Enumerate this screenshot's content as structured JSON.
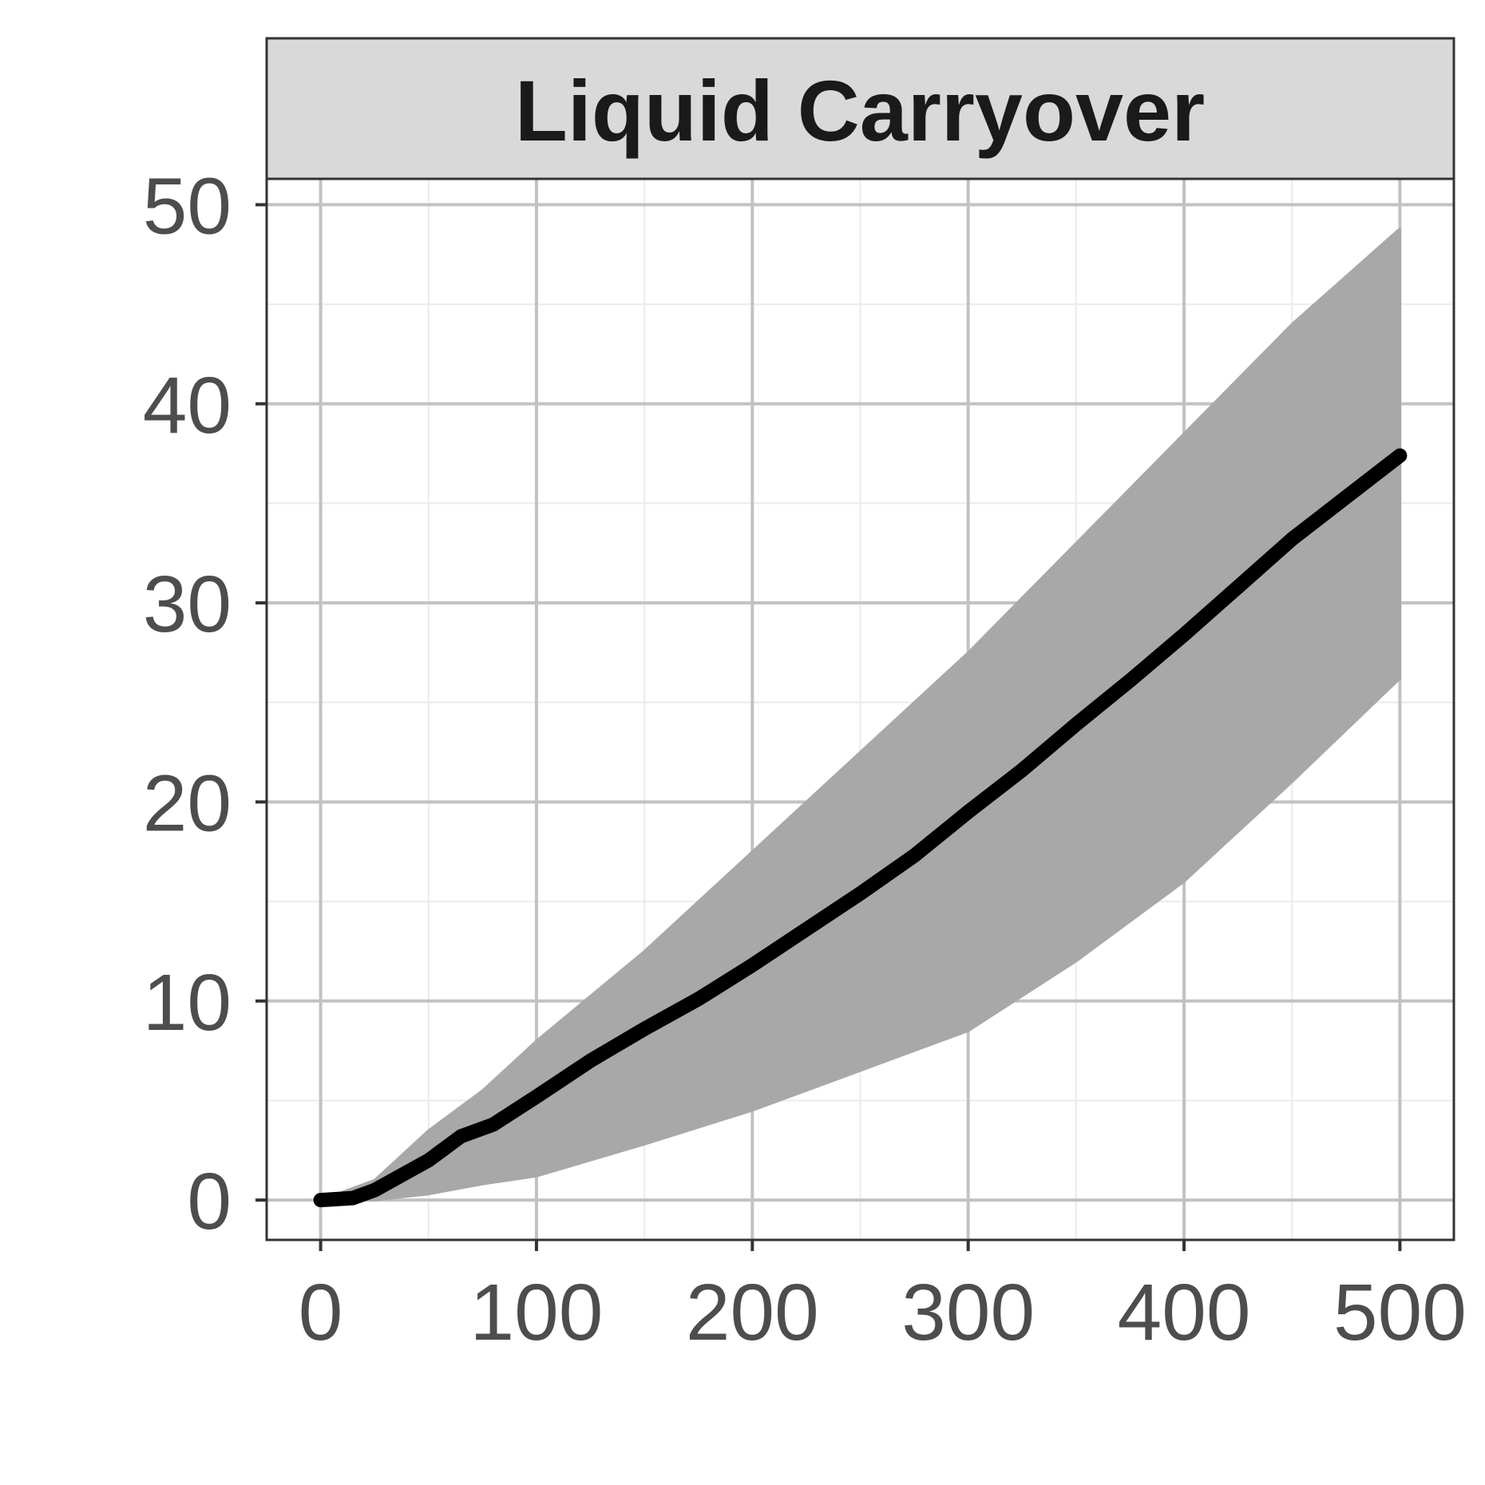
{
  "chart_data": {
    "type": "line",
    "title": "Liquid Carryover",
    "xlabel": "",
    "ylabel": "",
    "xlim": [
      -25,
      525
    ],
    "ylim": [
      -2,
      51.3
    ],
    "x_ticks": [
      0,
      100,
      200,
      300,
      400,
      500
    ],
    "y_ticks": [
      0,
      10,
      20,
      30,
      40,
      50
    ],
    "x_minor_ticks": [
      50,
      150,
      250,
      350,
      450
    ],
    "y_minor_ticks": [
      5,
      15,
      25,
      35,
      45
    ],
    "grid": true,
    "legend": "none",
    "series": [
      {
        "role": "simulations-upper-envelope",
        "color": "#a8a8a8",
        "x": [
          0,
          25,
          50,
          75,
          100,
          150,
          200,
          250,
          300,
          350,
          400,
          450,
          500
        ],
        "y": [
          0,
          1.0,
          3.5,
          5.5,
          8.0,
          12.5,
          17.5,
          22.5,
          27.5,
          33.0,
          38.5,
          44.0,
          48.8
        ]
      },
      {
        "role": "simulations-lower-envelope",
        "color": "#a8a8a8",
        "x": [
          0,
          25,
          50,
          75,
          100,
          150,
          200,
          250,
          300,
          350,
          400,
          450,
          500
        ],
        "y": [
          0,
          0.0,
          0.3,
          0.8,
          1.2,
          2.8,
          4.5,
          6.5,
          8.5,
          12.0,
          16.0,
          21.0,
          26.2
        ]
      },
      {
        "role": "mean",
        "color": "#000000",
        "x": [
          0,
          15,
          25,
          50,
          65,
          80,
          100,
          125,
          150,
          175,
          200,
          225,
          250,
          275,
          300,
          325,
          350,
          375,
          400,
          425,
          450,
          475,
          500
        ],
        "y": [
          0,
          0.1,
          0.5,
          2.0,
          3.2,
          3.8,
          5.2,
          7.0,
          8.6,
          10.1,
          11.8,
          13.6,
          15.4,
          17.3,
          19.5,
          21.6,
          23.9,
          26.1,
          28.4,
          30.8,
          33.2,
          35.3,
          37.4
        ]
      }
    ]
  }
}
